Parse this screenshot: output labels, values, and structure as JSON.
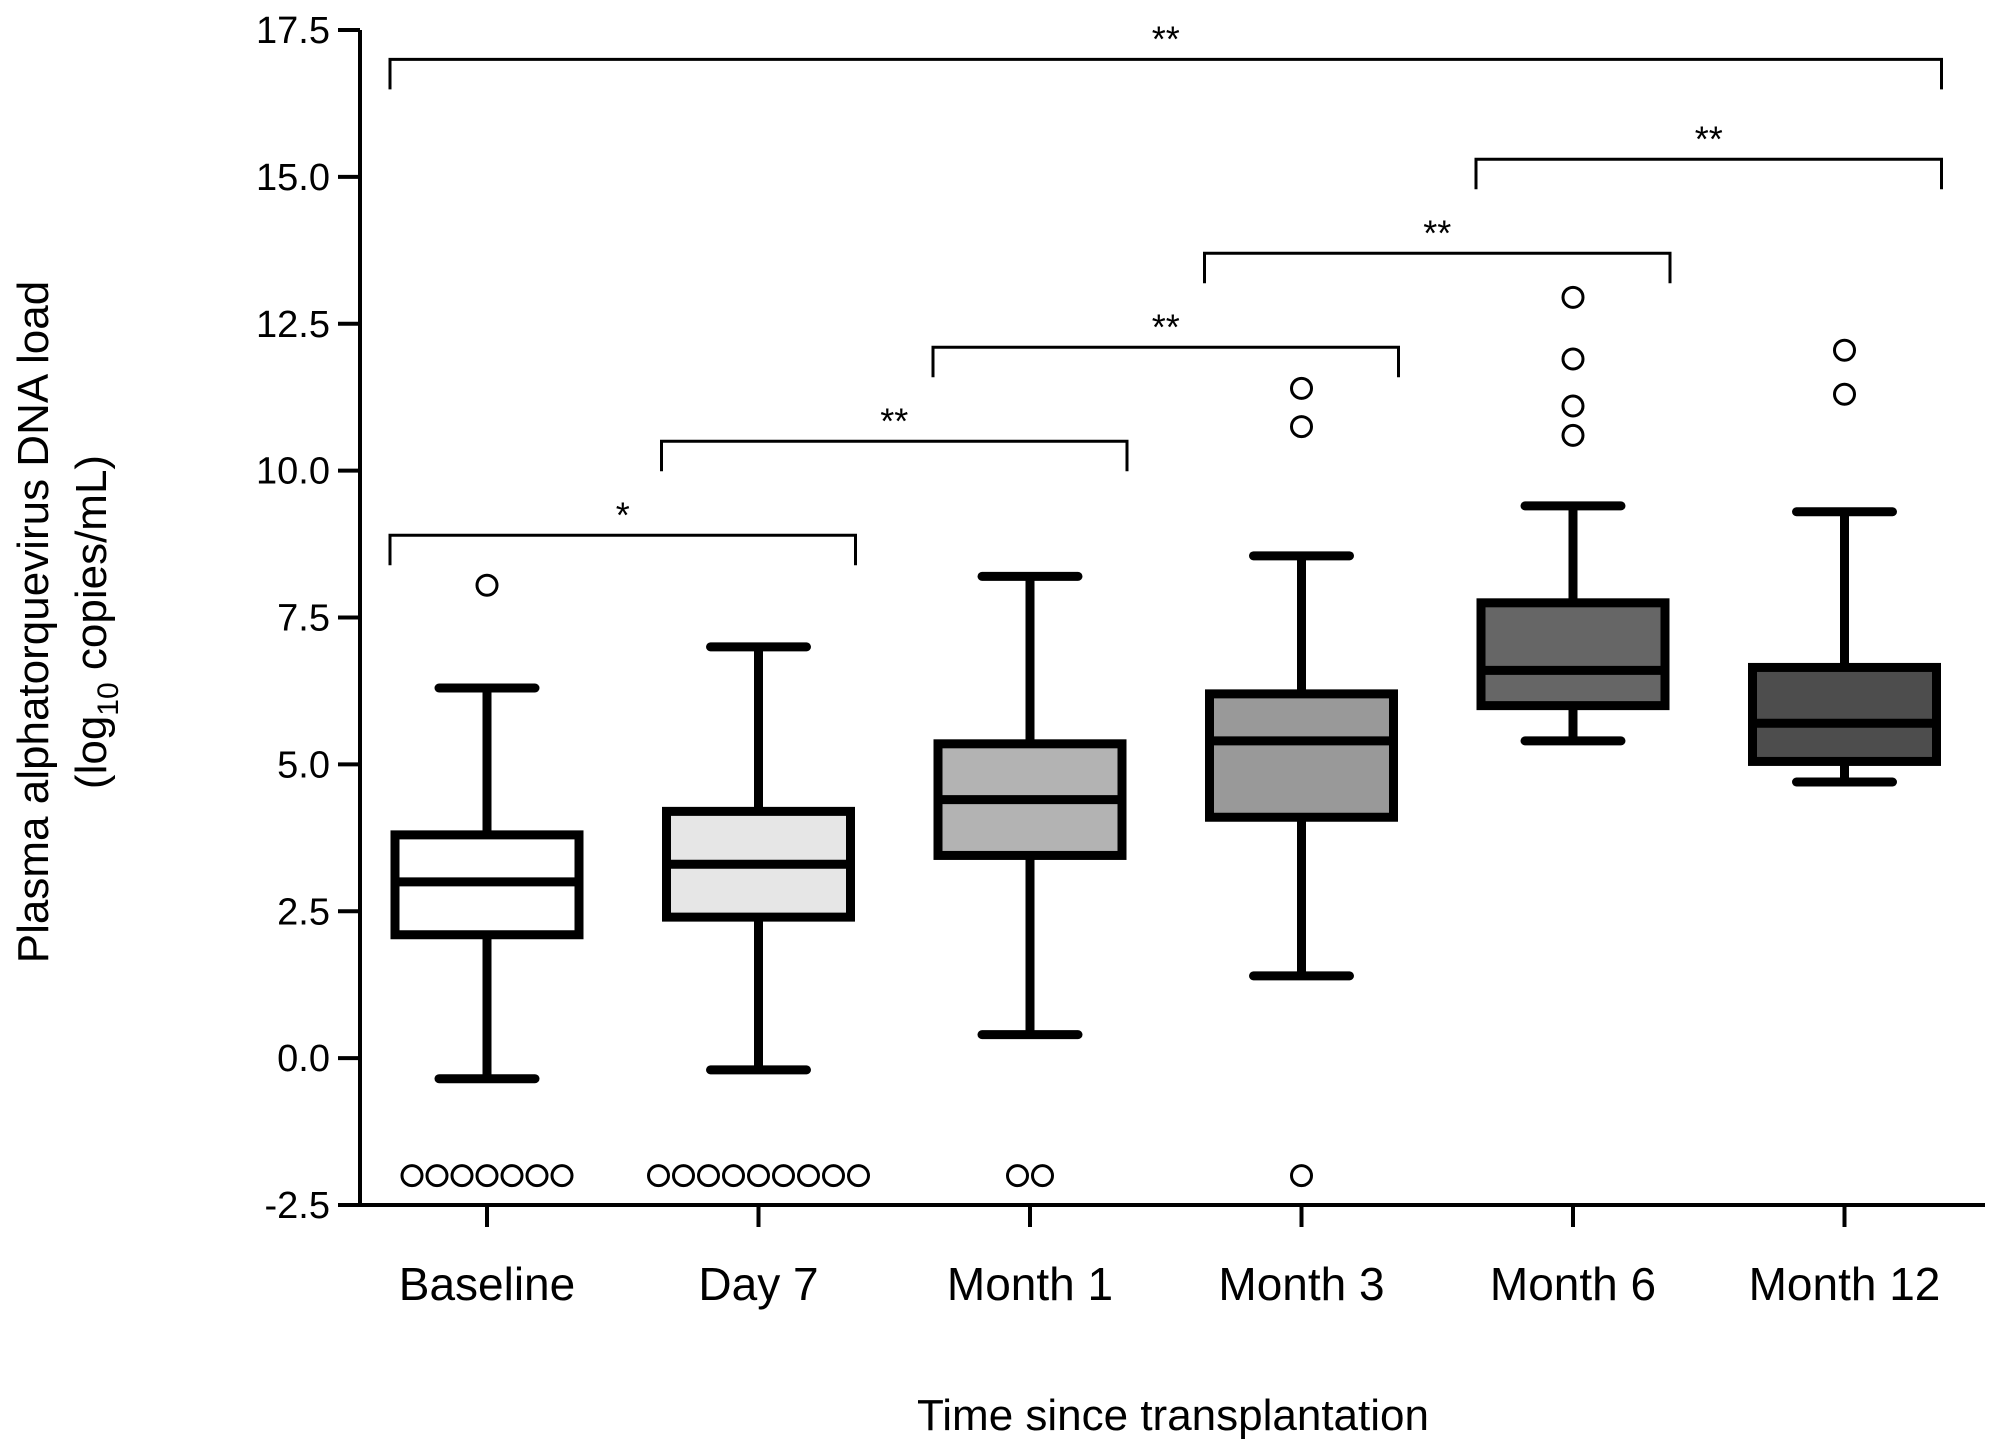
{
  "chart_data": {
    "type": "box",
    "xlabel": "Time since transplantation",
    "ylabel_line1": "Plasma alphatorquevirus DNA load",
    "ylabel_line2_prefix": "(log",
    "ylabel_line2_sub": "10",
    "ylabel_line2_suffix": " copies/mL)",
    "ylim": [
      -2.5,
      17.5
    ],
    "yticks": [
      -2.5,
      0.0,
      2.5,
      5.0,
      7.5,
      10.0,
      12.5,
      15.0,
      17.5
    ],
    "ytick_labels": [
      "-2.5",
      "0.0",
      "2.5",
      "5.0",
      "7.5",
      "10.0",
      "12.5",
      "15.0",
      "17.5"
    ],
    "grid": false,
    "categories": [
      "Baseline",
      "Day 7",
      "Month 1",
      "Month 3",
      "Month 6",
      "Month 12"
    ],
    "boxes": [
      {
        "category": "Baseline",
        "whisker_low": -0.35,
        "q1": 2.1,
        "median": 3.0,
        "q3": 3.8,
        "whisker_high": 6.3,
        "fill": "#ffffff",
        "outliers": [
          8.05
        ],
        "undetectable_count": 7
      },
      {
        "category": "Day 7",
        "whisker_low": -0.2,
        "q1": 2.4,
        "median": 3.3,
        "q3": 4.2,
        "whisker_high": 7.0,
        "fill": "#e6e6e6",
        "outliers": [],
        "undetectable_count": 9
      },
      {
        "category": "Month 1",
        "whisker_low": 0.4,
        "q1": 3.45,
        "median": 4.4,
        "q3": 5.35,
        "whisker_high": 8.2,
        "fill": "#b3b3b3",
        "outliers": [],
        "undetectable_count": 2
      },
      {
        "category": "Month 3",
        "whisker_low": 1.4,
        "q1": 4.1,
        "median": 5.4,
        "q3": 6.2,
        "whisker_high": 8.55,
        "fill": "#999999",
        "outliers": [
          10.75,
          11.4
        ],
        "undetectable_count": 1
      },
      {
        "category": "Month 6",
        "whisker_low": 5.4,
        "q1": 6.0,
        "median": 6.6,
        "q3": 7.75,
        "whisker_high": 9.4,
        "fill": "#666666",
        "outliers": [
          10.6,
          11.1,
          11.9,
          12.95
        ],
        "undetectable_count": 0
      },
      {
        "category": "Month 12",
        "whisker_low": 4.7,
        "q1": 5.05,
        "median": 5.7,
        "q3": 6.65,
        "whisker_high": 9.3,
        "fill": "#4d4d4d",
        "outliers": [
          11.3,
          12.05
        ],
        "undetectable_count": 0
      }
    ],
    "undetectable_value": -2.0,
    "significance_brackets": [
      {
        "from": "Baseline",
        "to": "Month 12",
        "y": 17.0,
        "label": "**"
      },
      {
        "from": "Month 6",
        "to": "Month 12",
        "y": 15.3,
        "label": "**"
      },
      {
        "from": "Month 3",
        "to": "Month 6",
        "y": 13.7,
        "label": "**"
      },
      {
        "from": "Month 1",
        "to": "Month 3",
        "y": 12.1,
        "label": "**"
      },
      {
        "from": "Day 7",
        "to": "Month 1",
        "y": 10.5,
        "label": "**"
      },
      {
        "from": "Baseline",
        "to": "Day 7",
        "y": 8.9,
        "label": "*"
      }
    ]
  }
}
